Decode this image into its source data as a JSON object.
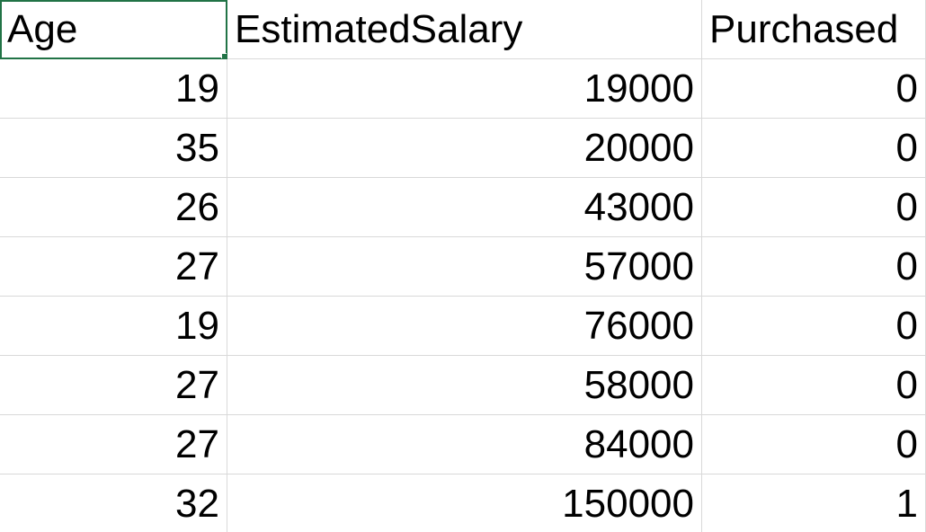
{
  "colors": {
    "selection": "#217346",
    "gridline": "#d9d9d9"
  },
  "sheet": {
    "headers": [
      "Age",
      "EstimatedSalary",
      "Purchased"
    ],
    "rows": [
      [
        "19",
        "19000",
        "0"
      ],
      [
        "35",
        "20000",
        "0"
      ],
      [
        "26",
        "43000",
        "0"
      ],
      [
        "27",
        "57000",
        "0"
      ],
      [
        "19",
        "76000",
        "0"
      ],
      [
        "27",
        "58000",
        "0"
      ],
      [
        "27",
        "84000",
        "0"
      ],
      [
        "32",
        "150000",
        "1"
      ]
    ]
  }
}
